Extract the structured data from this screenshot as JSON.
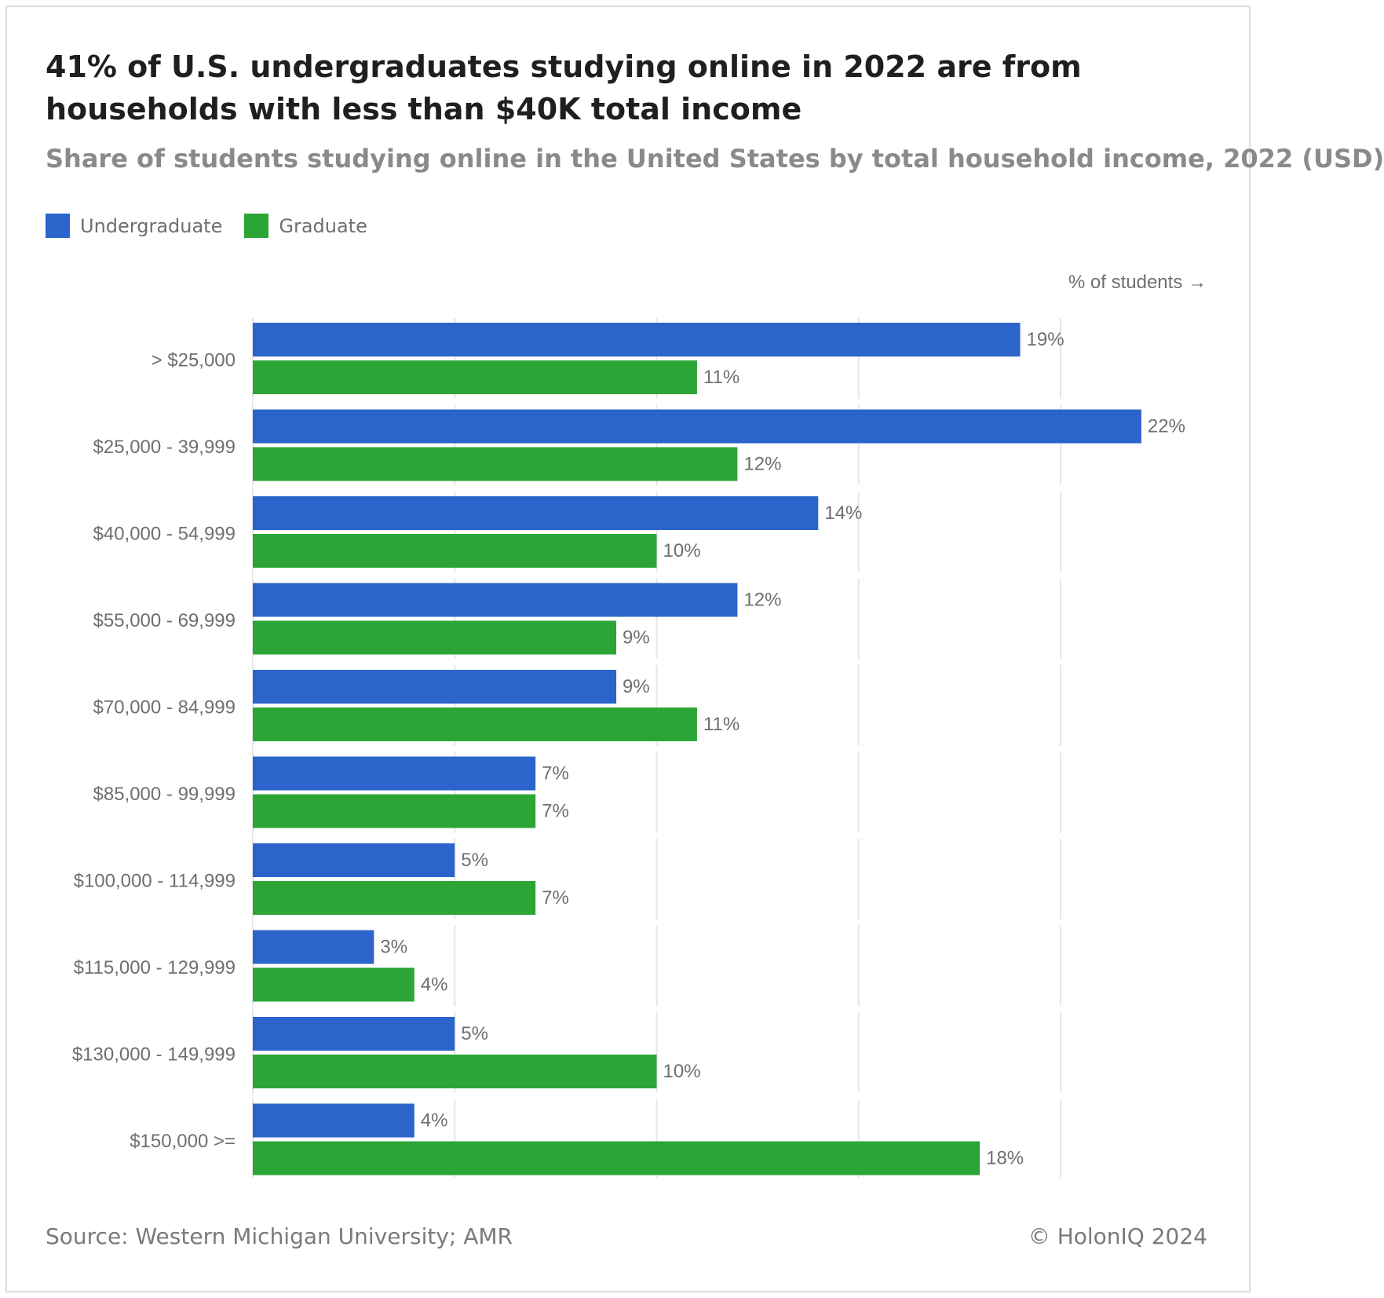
{
  "title": "41% of U.S. undergraduates studying online in 2022 are from households with less than $40K total income",
  "subtitle": "Share of students studying online in the United States by total household income, 2022 (USD)",
  "axis_hint": "% of students →",
  "source": "Source: Western Michigan University; AMR",
  "copyright": "© HolonIQ 2024",
  "colors": {
    "undergraduate": "#2b65cc",
    "graduate": "#2ba636",
    "grid": "#e6e6e6",
    "label": "#6f6f6f"
  },
  "chart_data": {
    "type": "bar",
    "orientation": "horizontal",
    "categories": [
      "> $25,000",
      "$25,000 - 39,999",
      "$40,000 - 54,999",
      "$55,000 - 69,999",
      "$70,000 - 84,999",
      "$85,000 - 99,999",
      "$100,000 - 114,999",
      "$115,000 - 129,999",
      "$130,000 - 149,999",
      "$150,000 >="
    ],
    "series": [
      {
        "name": "Undergraduate",
        "values": [
          19,
          22,
          14,
          12,
          9,
          7,
          5,
          3,
          5,
          4
        ]
      },
      {
        "name": "Graduate",
        "values": [
          11,
          12,
          10,
          9,
          11,
          7,
          7,
          4,
          10,
          18
        ]
      }
    ],
    "value_suffix": "%",
    "xlim": [
      0,
      22
    ],
    "grid_interval": 5,
    "grid": true,
    "legend": "top-left"
  }
}
